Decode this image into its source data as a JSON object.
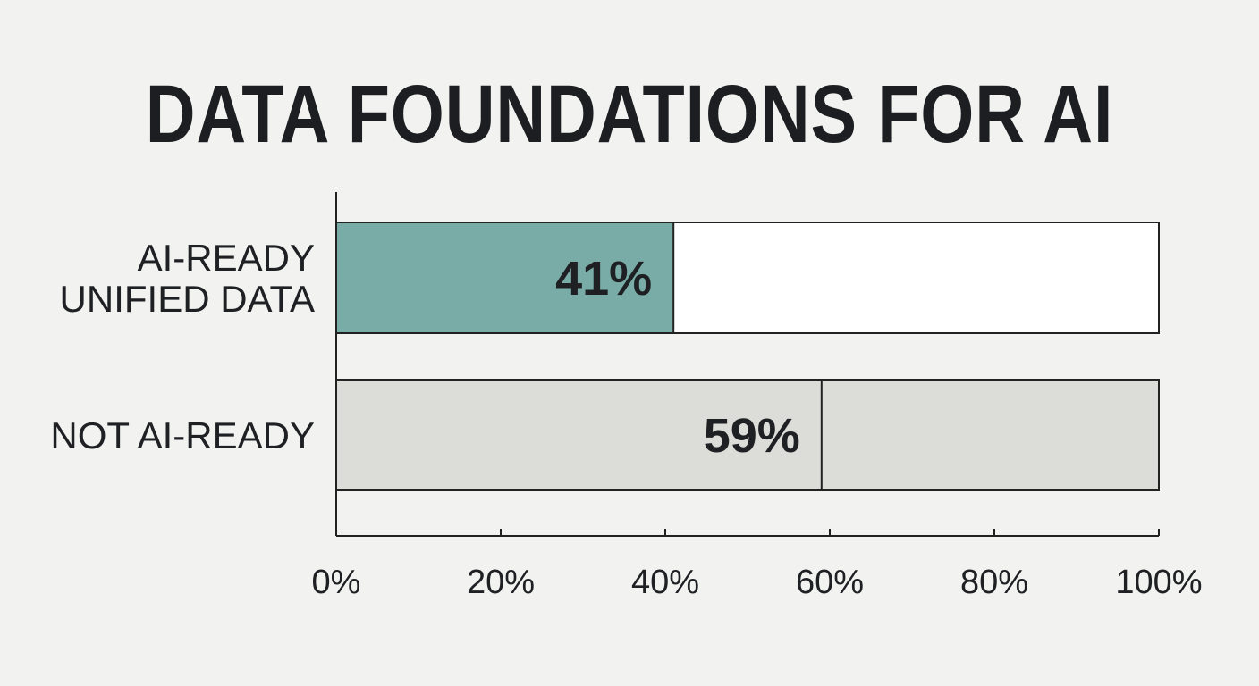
{
  "chart_data": {
    "type": "bar",
    "orientation": "horizontal",
    "title": "DATA FOUNDATIONS FOR AI",
    "categories": [
      [
        "AI-READY",
        "UNIFIED DATA"
      ],
      [
        "NOT AI-READY"
      ]
    ],
    "values": [
      41,
      59
    ],
    "value_labels": [
      "41%",
      "59%"
    ],
    "colors": [
      "#79aca7",
      "#dcdcd9"
    ],
    "track_color": "#ffffff",
    "xlim": [
      0,
      100
    ],
    "x_ticks": [
      0,
      20,
      40,
      60,
      80,
      100
    ],
    "x_tick_labels": [
      "0%",
      "20%",
      "40%",
      "60%",
      "80%",
      "100%"
    ],
    "xlabel": "",
    "ylabel": "",
    "grid": false,
    "legend": "none"
  }
}
